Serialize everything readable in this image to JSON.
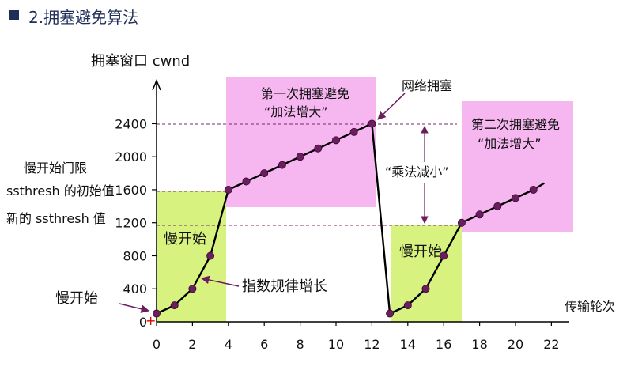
{
  "heading": "2.拥塞避免算法",
  "chart_data": {
    "type": "line",
    "ylabel": "拥塞窗口 cwnd",
    "xlabel": "传输轮次",
    "xticks": [
      "0",
      "2",
      "4",
      "6",
      "8",
      "10",
      "12",
      "14",
      "16",
      "18",
      "20",
      "22"
    ],
    "yticks": [
      "0",
      "400",
      "800",
      "1200",
      "1600",
      "2000",
      "2400"
    ],
    "xlim": [
      0,
      23
    ],
    "ylim": [
      0,
      2600
    ],
    "series": [
      {
        "points": [
          [
            0,
            100
          ],
          [
            1,
            200
          ],
          [
            2,
            400
          ],
          [
            3,
            800
          ],
          [
            4,
            1600
          ],
          [
            5,
            1700
          ],
          [
            6,
            1800
          ],
          [
            7,
            1900
          ],
          [
            8,
            2000
          ],
          [
            9,
            2100
          ],
          [
            10,
            2200
          ],
          [
            11,
            2300
          ],
          [
            12,
            2400
          ],
          [
            13,
            100
          ],
          [
            14,
            200
          ],
          [
            15,
            400
          ],
          [
            16,
            800
          ],
          [
            17,
            1200
          ],
          [
            18,
            1300
          ],
          [
            19,
            1400
          ],
          [
            20,
            1500
          ],
          [
            21,
            1600
          ],
          [
            21.6,
            1680
          ]
        ],
        "markers": [
          [
            0,
            100
          ],
          [
            1,
            200
          ],
          [
            2,
            400
          ],
          [
            3,
            800
          ],
          [
            4,
            1600
          ],
          [
            5,
            1700
          ],
          [
            6,
            1800
          ],
          [
            7,
            1900
          ],
          [
            8,
            2000
          ],
          [
            9,
            2100
          ],
          [
            10,
            2200
          ],
          [
            11,
            2300
          ],
          [
            12,
            2400
          ],
          [
            13,
            100
          ],
          [
            14,
            200
          ],
          [
            15,
            400
          ],
          [
            16,
            800
          ],
          [
            17,
            1200
          ],
          [
            18,
            1300
          ],
          [
            19,
            1400
          ],
          [
            20,
            1500
          ],
          [
            21,
            1600
          ]
        ]
      }
    ],
    "colors": {
      "line": "#000000",
      "marker": "#6a1e5e",
      "slow_start_fill": "#d7f27e",
      "avoidance_fill": "#f6b6f0",
      "dashed": "#7a2a6a",
      "heading_square": "#1f2f5a",
      "start_marker": "#e00000"
    },
    "left_labels": {
      "initial_threshold_line1": "慢开始门限",
      "initial_threshold_line2": "ssthresh 的初始值",
      "new_threshold": "新的 ssthresh 值",
      "slow_start_start": "慢开始"
    },
    "regions": {
      "slow_start_1": "慢开始",
      "slow_start_2": "慢开始",
      "ca1_line1": "第一次拥塞避免",
      "ca1_line2": "“加法增大”",
      "ca2_line1": "第二次拥塞避免",
      "ca2_line2": "“加法增大”"
    },
    "annotations": {
      "congestion": "网络拥塞",
      "mult_decrease": "“乘法减小”",
      "exp_growth": "指数规律增长"
    }
  }
}
